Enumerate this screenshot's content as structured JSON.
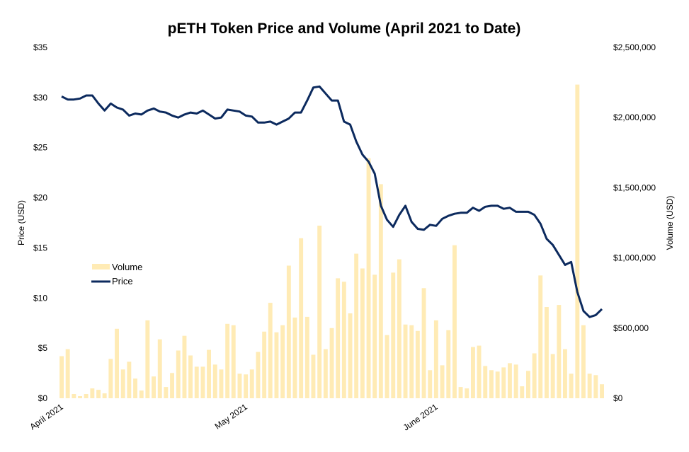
{
  "chart_data": {
    "type": "bar+line",
    "title": "pETH Token Price and Volume (April 2021 to Date)",
    "ylabel_left": "Price (USD)",
    "ylabel_right": "Volume (USD)",
    "ylim_left": [
      0,
      35
    ],
    "ylim_right": [
      0,
      2500000
    ],
    "left_ticks": [
      "$0",
      "$5",
      "$10",
      "$15",
      "$20",
      "$25",
      "$30",
      "$35"
    ],
    "left_tick_values": [
      0,
      5,
      10,
      15,
      20,
      25,
      30,
      35
    ],
    "right_ticks": [
      "$0",
      "$500,000",
      "$1,000,000",
      "$1,500,000",
      "$2,000,000",
      "$2,500,000"
    ],
    "right_tick_values": [
      0,
      500000,
      1000000,
      1500000,
      2000000,
      2500000
    ],
    "x_ticks": [
      {
        "label": "April 2021",
        "index": 0
      },
      {
        "label": "May 2021",
        "index": 30
      },
      {
        "label": "June 2021",
        "index": 61
      }
    ],
    "grid": false,
    "legend": {
      "position": "left-middle",
      "items": [
        {
          "label": "Volume",
          "type": "bar",
          "color": "#FFEBB5"
        },
        {
          "label": "Price",
          "type": "line",
          "color": "#0C2A5E"
        }
      ]
    },
    "series": [
      {
        "name": "Volume",
        "type": "bar",
        "axis": "right",
        "color": "#FFEBB5",
        "values": [
          300000,
          350000,
          30000,
          15000,
          30000,
          70000,
          60000,
          35000,
          280000,
          495000,
          205000,
          260000,
          140000,
          55000,
          555000,
          155000,
          420000,
          80000,
          180000,
          340000,
          445000,
          305000,
          225000,
          225000,
          345000,
          240000,
          205000,
          530000,
          520000,
          175000,
          170000,
          205000,
          330000,
          475000,
          680000,
          470000,
          520000,
          945000,
          575000,
          1140000,
          580000,
          310000,
          1230000,
          350000,
          500000,
          855000,
          830000,
          605000,
          1030000,
          925000,
          1710000,
          880000,
          1525000,
          450000,
          895000,
          990000,
          525000,
          520000,
          480000,
          785000,
          200000,
          555000,
          235000,
          485000,
          1090000,
          80000,
          70000,
          365000,
          375000,
          230000,
          200000,
          190000,
          220000,
          250000,
          240000,
          85000,
          195000,
          320000,
          875000,
          650000,
          315000,
          665000,
          350000,
          175000,
          2235000,
          520000,
          175000,
          165000,
          100000
        ]
      },
      {
        "name": "Price",
        "type": "line",
        "axis": "left",
        "color": "#0C2A5E",
        "values": [
          30.1,
          29.8,
          29.8,
          29.9,
          30.2,
          30.2,
          29.4,
          28.7,
          29.4,
          29.0,
          28.8,
          28.2,
          28.4,
          28.3,
          28.7,
          28.9,
          28.6,
          28.5,
          28.2,
          28.0,
          28.3,
          28.5,
          28.4,
          28.7,
          28.3,
          27.9,
          28.0,
          28.8,
          28.7,
          28.6,
          28.2,
          28.1,
          27.5,
          27.5,
          27.6,
          27.3,
          27.6,
          27.9,
          28.5,
          28.5,
          29.7,
          31.0,
          31.1,
          30.4,
          29.7,
          29.7,
          27.6,
          27.3,
          25.6,
          24.3,
          23.6,
          22.4,
          19.2,
          17.8,
          17.1,
          18.3,
          19.2,
          17.6,
          16.9,
          16.8,
          17.3,
          17.2,
          17.9,
          18.2,
          18.4,
          18.5,
          18.5,
          19.0,
          18.7,
          19.1,
          19.2,
          19.2,
          18.9,
          19.0,
          18.6,
          18.6,
          18.6,
          18.3,
          17.4,
          15.9,
          15.3,
          14.3,
          13.3,
          13.6,
          10.6,
          8.7,
          8.1,
          8.3,
          8.9
        ]
      }
    ]
  }
}
